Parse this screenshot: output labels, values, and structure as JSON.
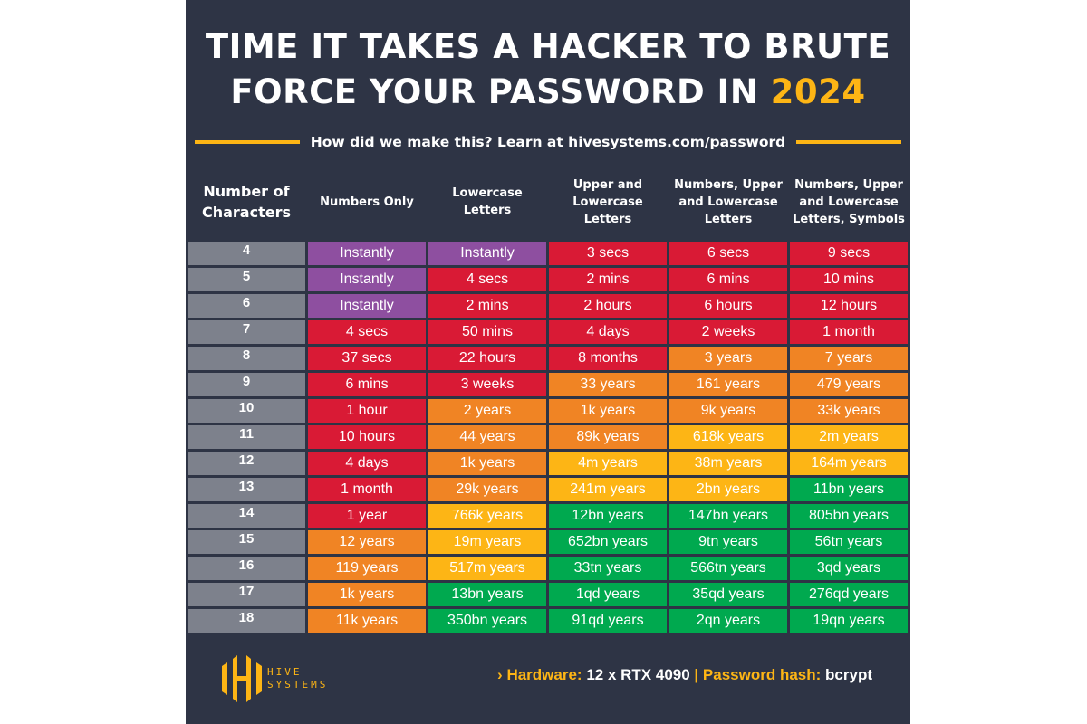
{
  "title": {
    "line1": "TIME IT TAKES A HACKER TO BRUTE",
    "line2_prefix": "FORCE YOUR PASSWORD IN ",
    "line2_year": "2024"
  },
  "subtitle": "How did we make this? Learn at hivesystems.com/password",
  "colors": {
    "background": "#2e3445",
    "accent": "#fdb515",
    "Instant": "#8e4fa0",
    "Red": "#d91a35",
    "Orange": "#f08424",
    "Yellow": "#fdb515",
    "Green": "#00a94f",
    "RowHeader": "#7d818c"
  },
  "chart_data": {
    "type": "table",
    "columns": [
      "Number of Characters",
      "Numbers Only",
      "Lowercase Letters",
      "Upper and Lowercase Letters",
      "Numbers, Upper and Lowercase Letters",
      "Numbers, Upper and Lowercase Letters, Symbols"
    ],
    "rows": [
      {
        "chars": "4",
        "values": [
          "Instantly",
          "Instantly",
          "3 secs",
          "6 secs",
          "9 secs"
        ],
        "levels": [
          "P",
          "P",
          "R",
          "R",
          "R"
        ]
      },
      {
        "chars": "5",
        "values": [
          "Instantly",
          "4 secs",
          "2 mins",
          "6 mins",
          "10 mins"
        ],
        "levels": [
          "P",
          "R",
          "R",
          "R",
          "R"
        ]
      },
      {
        "chars": "6",
        "values": [
          "Instantly",
          "2 mins",
          "2 hours",
          "6 hours",
          "12 hours"
        ],
        "levels": [
          "P",
          "R",
          "R",
          "R",
          "R"
        ]
      },
      {
        "chars": "7",
        "values": [
          "4 secs",
          "50 mins",
          "4 days",
          "2 weeks",
          "1 month"
        ],
        "levels": [
          "R",
          "R",
          "R",
          "R",
          "R"
        ]
      },
      {
        "chars": "8",
        "values": [
          "37 secs",
          "22 hours",
          "8 months",
          "3 years",
          "7 years"
        ],
        "levels": [
          "R",
          "R",
          "R",
          "O",
          "O"
        ]
      },
      {
        "chars": "9",
        "values": [
          "6 mins",
          "3 weeks",
          "33 years",
          "161 years",
          "479 years"
        ],
        "levels": [
          "R",
          "R",
          "O",
          "O",
          "O"
        ]
      },
      {
        "chars": "10",
        "values": [
          "1 hour",
          "2 years",
          "1k years",
          "9k years",
          "33k years"
        ],
        "levels": [
          "R",
          "O",
          "O",
          "O",
          "O"
        ]
      },
      {
        "chars": "11",
        "values": [
          "10 hours",
          "44 years",
          "89k years",
          "618k years",
          "2m years"
        ],
        "levels": [
          "R",
          "O",
          "O",
          "Y",
          "Y"
        ]
      },
      {
        "chars": "12",
        "values": [
          "4 days",
          "1k years",
          "4m years",
          "38m years",
          "164m years"
        ],
        "levels": [
          "R",
          "O",
          "Y",
          "Y",
          "Y"
        ]
      },
      {
        "chars": "13",
        "values": [
          "1 month",
          "29k years",
          "241m years",
          "2bn years",
          "11bn years"
        ],
        "levels": [
          "R",
          "O",
          "Y",
          "Y",
          "G"
        ]
      },
      {
        "chars": "14",
        "values": [
          "1 year",
          "766k years",
          "12bn years",
          "147bn years",
          "805bn years"
        ],
        "levels": [
          "R",
          "Y",
          "G",
          "G",
          "G"
        ]
      },
      {
        "chars": "15",
        "values": [
          "12 years",
          "19m years",
          "652bn years",
          "9tn years",
          "56tn years"
        ],
        "levels": [
          "O",
          "Y",
          "G",
          "G",
          "G"
        ]
      },
      {
        "chars": "16",
        "values": [
          "119 years",
          "517m years",
          "33tn years",
          "566tn years",
          "3qd years"
        ],
        "levels": [
          "O",
          "Y",
          "G",
          "G",
          "G"
        ]
      },
      {
        "chars": "17",
        "values": [
          "1k years",
          "13bn years",
          "1qd years",
          "35qd years",
          "276qd years"
        ],
        "levels": [
          "O",
          "G",
          "G",
          "G",
          "G"
        ]
      },
      {
        "chars": "18",
        "values": [
          "11k years",
          "350bn years",
          "91qd years",
          "2qn years",
          "19qn years"
        ],
        "levels": [
          "O",
          "G",
          "G",
          "G",
          "G"
        ]
      }
    ]
  },
  "footer": {
    "logo": {
      "line1": "HIVE",
      "line2": "SYSTEMS"
    },
    "chevron": "›",
    "hardware_label": "Hardware:",
    "hardware_value": "12 x RTX 4090",
    "separator": "|",
    "hash_label": "Password hash:",
    "hash_value": "bcrypt"
  }
}
